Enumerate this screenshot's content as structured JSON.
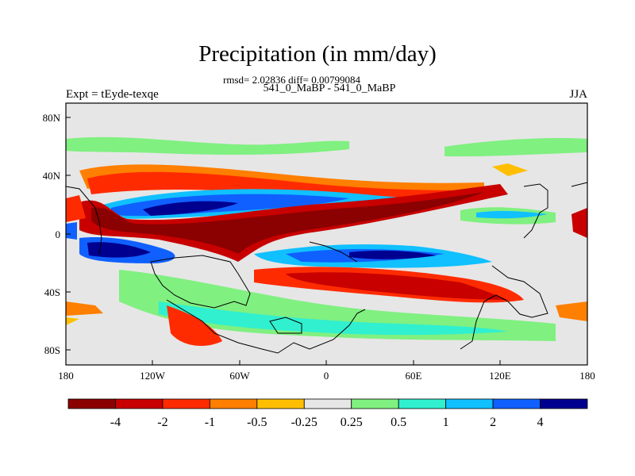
{
  "title": "Precipitation (in mm/day)",
  "stats": "rmsd= 2.02836 diff= 0.00799084",
  "subtitle": "541_0_MaBP - 541_0_MaBP",
  "left_label": "Expt = tEyde-texqe",
  "right_label": "JJA",
  "lat_ticks": [
    "80N",
    "40N",
    "0",
    "40S",
    "80S"
  ],
  "lon_ticks": [
    "180",
    "120W",
    "60W",
    "0",
    "60E",
    "120E",
    "180"
  ],
  "colorbar": {
    "labels": [
      "-4",
      "-2",
      "-1",
      "-0.5",
      "-0.25",
      "0.25",
      "0.5",
      "1",
      "2",
      "4"
    ],
    "colors": [
      "#8b0000",
      "#c80000",
      "#ff2b00",
      "#ff7f00",
      "#ffbf00",
      "#e6e6e6",
      "#80f080",
      "#30f0d0",
      "#10c0ff",
      "#1060ff",
      "#000090"
    ]
  },
  "colors": {
    "background_field": "#e6e6e6",
    "coast": "#000000"
  }
}
